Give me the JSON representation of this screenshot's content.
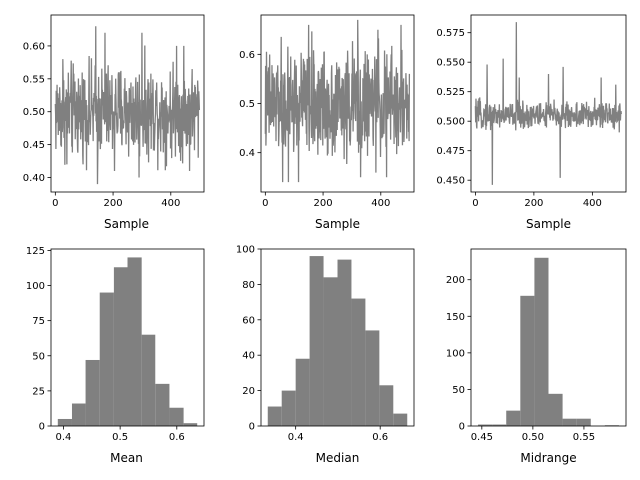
{
  "chart_data": [
    {
      "type": "line",
      "xlabel": "Sample",
      "ylabel": "",
      "color": "#808080",
      "n_samples": 500,
      "xlim": [
        -15,
        515
      ],
      "ylim": [
        0.378,
        0.647
      ],
      "xticks": [
        0,
        200,
        400
      ],
      "yticks": [
        0.4,
        0.45,
        0.5,
        0.55,
        0.6
      ],
      "yticks_text": [
        "0.40",
        "0.45",
        "0.50",
        "0.55",
        "0.60"
      ],
      "mean_level": 0.5,
      "envelope": [
        0.42,
        0.6
      ],
      "spikes": [
        {
          "x": 26,
          "y": 0.58
        },
        {
          "x": 40,
          "y": 0.42
        },
        {
          "x": 96,
          "y": 0.42
        },
        {
          "x": 140,
          "y": 0.63
        },
        {
          "x": 146,
          "y": 0.39
        },
        {
          "x": 172,
          "y": 0.62
        },
        {
          "x": 205,
          "y": 0.41
        },
        {
          "x": 290,
          "y": 0.4
        },
        {
          "x": 300,
          "y": 0.62
        },
        {
          "x": 420,
          "y": 0.6
        },
        {
          "x": 445,
          "y": 0.6
        },
        {
          "x": 465,
          "y": 0.41
        }
      ]
    },
    {
      "type": "line",
      "xlabel": "Sample",
      "ylabel": "",
      "color": "#808080",
      "n_samples": 500,
      "xlim": [
        -15,
        515
      ],
      "ylim": [
        0.32,
        0.68
      ],
      "xticks": [
        0,
        200,
        400
      ],
      "yticks": [
        0.4,
        0.5,
        0.6
      ],
      "yticks_text": [
        "0.4",
        "0.5",
        "0.6"
      ],
      "mean_level": 0.5,
      "envelope": [
        0.36,
        0.64
      ],
      "spikes": [
        {
          "x": 60,
          "y": 0.34
        },
        {
          "x": 80,
          "y": 0.34
        },
        {
          "x": 115,
          "y": 0.34
        },
        {
          "x": 150,
          "y": 0.66
        },
        {
          "x": 320,
          "y": 0.67
        },
        {
          "x": 330,
          "y": 0.35
        },
        {
          "x": 390,
          "y": 0.65
        },
        {
          "x": 420,
          "y": 0.35
        },
        {
          "x": 470,
          "y": 0.66
        }
      ]
    },
    {
      "type": "line",
      "xlabel": "Sample",
      "ylabel": "",
      "color": "#808080",
      "n_samples": 500,
      "xlim": [
        -15,
        515
      ],
      "ylim": [
        0.44,
        0.59
      ],
      "xticks": [
        0,
        200,
        400
      ],
      "yticks": [
        0.45,
        0.475,
        0.5,
        0.525,
        0.55,
        0.575
      ],
      "yticks_text": [
        "0.450",
        "0.475",
        "0.500",
        "0.525",
        "0.550",
        "0.575"
      ],
      "mean_level": 0.505,
      "envelope": [
        0.49,
        0.52
      ],
      "spikes": [
        {
          "x": 40,
          "y": 0.548
        },
        {
          "x": 58,
          "y": 0.446
        },
        {
          "x": 95,
          "y": 0.553
        },
        {
          "x": 140,
          "y": 0.584
        },
        {
          "x": 150,
          "y": 0.537
        },
        {
          "x": 250,
          "y": 0.54
        },
        {
          "x": 290,
          "y": 0.452
        },
        {
          "x": 300,
          "y": 0.546
        },
        {
          "x": 430,
          "y": 0.537
        },
        {
          "x": 480,
          "y": 0.531
        }
      ]
    },
    {
      "type": "bar",
      "xlabel": "Mean",
      "ylabel": "",
      "color": "#808080",
      "bin_edges": [
        0.39,
        0.415,
        0.439,
        0.464,
        0.489,
        0.513,
        0.538,
        0.562,
        0.587,
        0.612,
        0.636
      ],
      "values": [
        5,
        16,
        47,
        95,
        113,
        120,
        65,
        30,
        13,
        2
      ],
      "xlim": [
        0.378,
        0.648
      ],
      "ylim": [
        0,
        126
      ],
      "xticks": [
        0.4,
        0.5,
        0.6
      ],
      "xticks_text": [
        "0.4",
        "0.5",
        "0.6"
      ],
      "yticks": [
        0,
        25,
        50,
        75,
        100,
        125
      ],
      "yticks_text": [
        "0",
        "25",
        "50",
        "75",
        "100",
        "125"
      ]
    },
    {
      "type": "bar",
      "xlabel": "Median",
      "ylabel": "",
      "color": "#808080",
      "bin_edges": [
        0.334,
        0.367,
        0.4,
        0.433,
        0.466,
        0.499,
        0.532,
        0.565,
        0.598,
        0.631,
        0.664
      ],
      "values": [
        11,
        20,
        38,
        96,
        84,
        94,
        72,
        54,
        23,
        7
      ],
      "xlim": [
        0.318,
        0.68
      ],
      "ylim": [
        0,
        100
      ],
      "xticks": [
        0.4,
        0.6
      ],
      "xticks_text": [
        "0.4",
        "0.6"
      ],
      "yticks": [
        0,
        20,
        40,
        60,
        80,
        100
      ],
      "yticks_text": [
        "0",
        "20",
        "40",
        "60",
        "80",
        "100"
      ]
    },
    {
      "type": "bar",
      "xlabel": "Midrange",
      "ylabel": "",
      "color": "#808080",
      "bin_edges": [
        0.4463,
        0.4601,
        0.4739,
        0.4877,
        0.5015,
        0.5153,
        0.5291,
        0.5429,
        0.5567,
        0.5705,
        0.5843
      ],
      "values": [
        2,
        2,
        21,
        178,
        230,
        44,
        10,
        10,
        0,
        1
      ],
      "xlim": [
        0.4394,
        0.5912
      ],
      "ylim": [
        0,
        242
      ],
      "xticks": [
        0.45,
        0.5,
        0.55
      ],
      "xticks_text": [
        "0.45",
        "0.50",
        "0.55"
      ],
      "yticks": [
        0,
        50,
        100,
        150,
        200
      ],
      "yticks_text": [
        "0",
        "50",
        "100",
        "150",
        "200"
      ]
    }
  ]
}
